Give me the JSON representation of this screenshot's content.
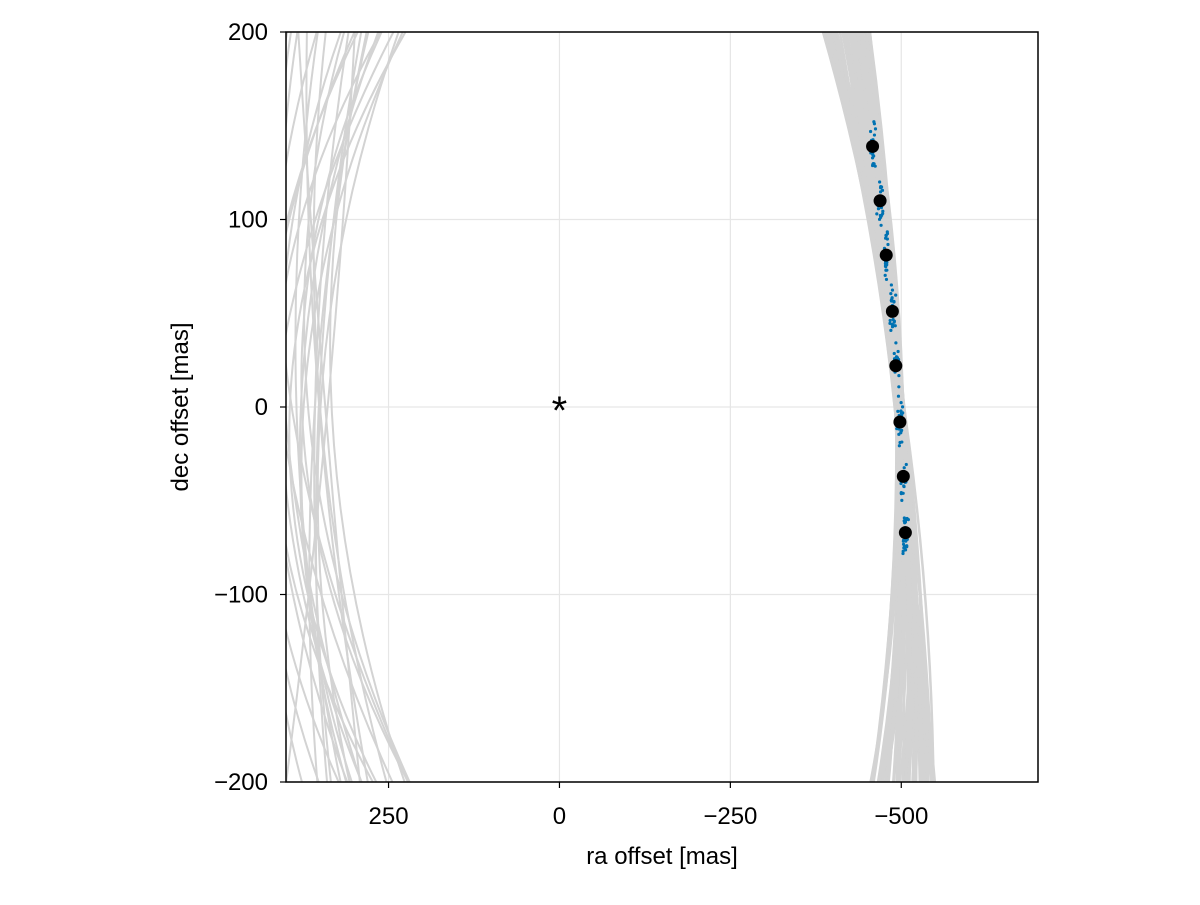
{
  "chart_data": {
    "type": "scatter",
    "title": "",
    "xlabel": "ra offset [mas]",
    "ylabel": "dec offset [mas]",
    "xlim": [
      400,
      -700
    ],
    "ylim": [
      -200,
      200
    ],
    "x_reversed": true,
    "xticks": [
      250,
      0,
      -250,
      -500
    ],
    "xtick_labels": [
      "250",
      "0",
      "−250",
      "−500"
    ],
    "yticks": [
      -200,
      -100,
      0,
      100,
      200
    ],
    "ytick_labels": [
      "−200",
      "−100",
      "0",
      "100",
      "200"
    ],
    "grid": true,
    "legend": "none",
    "star": {
      "x": 0,
      "y": 0,
      "symbol": "*"
    },
    "series": [
      {
        "role": "observations",
        "color": "#000000",
        "x": [
          -458,
          -469,
          -478,
          -487,
          -492,
          -498,
          -503,
          -506
        ],
        "y": [
          139,
          110,
          81,
          51,
          22,
          -8,
          -37,
          -67
        ]
      },
      {
        "role": "posterior-samples",
        "color": "#0072b2",
        "spread": 12
      },
      {
        "role": "orbit-tracks",
        "color": "#d3d3d3"
      }
    ]
  }
}
